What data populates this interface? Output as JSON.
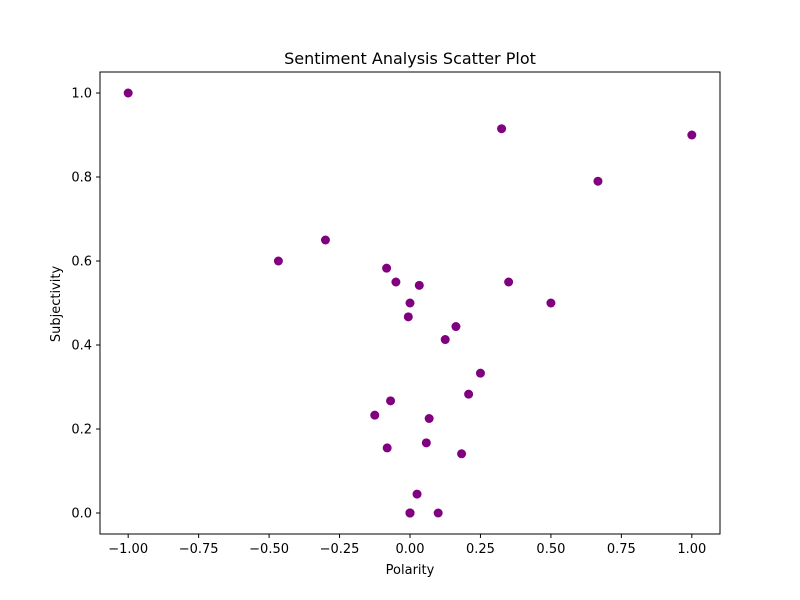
{
  "chart_data": {
    "type": "scatter",
    "title": "Sentiment Analysis Scatter Plot",
    "xlabel": "Polarity",
    "ylabel": "Subjectivity",
    "xlim": [
      -1.1,
      1.1
    ],
    "ylim": [
      -0.05,
      1.05
    ],
    "xticks": [
      -1.0,
      -0.75,
      -0.5,
      -0.25,
      0.0,
      0.25,
      0.5,
      0.75,
      1.0
    ],
    "xtick_labels": [
      "−1.00",
      "−0.75",
      "−0.50",
      "−0.25",
      "0.00",
      "0.25",
      "0.50",
      "0.75",
      "1.00"
    ],
    "yticks": [
      0.0,
      0.2,
      0.4,
      0.6,
      0.8,
      1.0
    ],
    "ytick_labels": [
      "0.0",
      "0.2",
      "0.4",
      "0.6",
      "0.8",
      "1.0"
    ],
    "grid": false,
    "marker_color": "#800080",
    "series": [
      {
        "points": [
          {
            "x": -1.0,
            "y": 1.0
          },
          {
            "x": 0.325,
            "y": 0.915
          },
          {
            "x": 1.0,
            "y": 0.9
          },
          {
            "x": 0.667,
            "y": 0.79
          },
          {
            "x": -0.3,
            "y": 0.65
          },
          {
            "x": -0.467,
            "y": 0.6
          },
          {
            "x": -0.083,
            "y": 0.583
          },
          {
            "x": -0.05,
            "y": 0.55
          },
          {
            "x": 0.35,
            "y": 0.55
          },
          {
            "x": 0.033,
            "y": 0.542
          },
          {
            "x": 0.0,
            "y": 0.5
          },
          {
            "x": 0.5,
            "y": 0.5
          },
          {
            "x": -0.006,
            "y": 0.467
          },
          {
            "x": 0.163,
            "y": 0.444
          },
          {
            "x": 0.125,
            "y": 0.413
          },
          {
            "x": 0.25,
            "y": 0.333
          },
          {
            "x": 0.208,
            "y": 0.283
          },
          {
            "x": -0.069,
            "y": 0.267
          },
          {
            "x": -0.125,
            "y": 0.233
          },
          {
            "x": 0.068,
            "y": 0.225
          },
          {
            "x": 0.058,
            "y": 0.167
          },
          {
            "x": -0.081,
            "y": 0.155
          },
          {
            "x": 0.183,
            "y": 0.141
          },
          {
            "x": 0.025,
            "y": 0.045
          },
          {
            "x": 0.1,
            "y": 0.0
          },
          {
            "x": 0.0,
            "y": 0.0
          },
          {
            "x": 0.0,
            "y": 0.0
          },
          {
            "x": 0.0,
            "y": 0.0
          },
          {
            "x": 0.0,
            "y": 0.0
          }
        ]
      }
    ]
  }
}
